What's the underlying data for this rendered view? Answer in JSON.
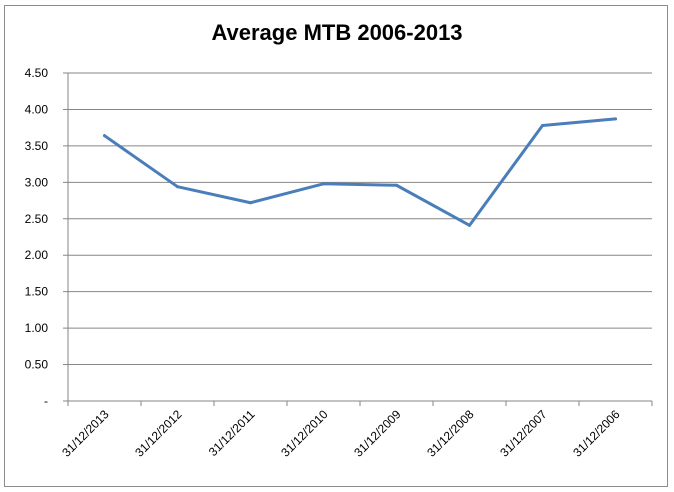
{
  "chart_data": {
    "type": "line",
    "title": "Average MTB 2006-2013",
    "xlabel": "",
    "ylabel": "",
    "categories": [
      "31/12/2013",
      "31/12/2012",
      "31/12/2011",
      "31/12/2010",
      "31/12/2009",
      "31/12/2008",
      "31/12/2007",
      "31/12/2006"
    ],
    "series": [
      {
        "values": [
          3.64,
          2.94,
          2.72,
          2.98,
          2.96,
          2.41,
          3.78,
          3.87
        ]
      }
    ],
    "ylim": [
      0,
      4.5
    ],
    "y_ticks": [
      "-",
      "0.50",
      "1.00",
      "1.50",
      "2.00",
      "2.50",
      "3.00",
      "3.50",
      "4.00",
      "4.50"
    ],
    "grid": true,
    "legend": "none",
    "colors": {
      "line": "#4a7ebb",
      "grid": "#868686",
      "axis": "#868686"
    }
  }
}
